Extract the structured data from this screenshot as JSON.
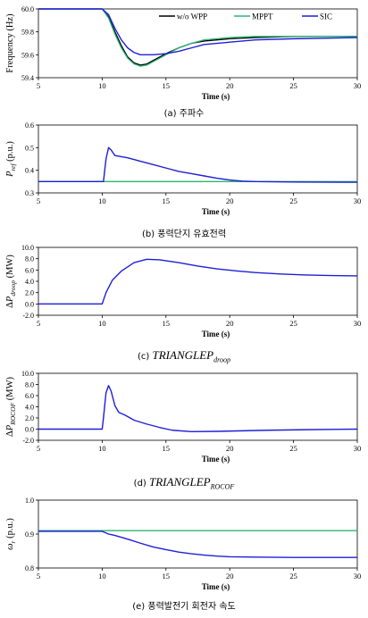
{
  "captions": {
    "a": "(a) 주파수",
    "b": "(b) 풍력단지 유효전력",
    "c_prefix": "(c)",
    "c_main": "TRIANGLEP",
    "c_sub": "droop",
    "d_prefix": "(d)",
    "d_main": "TRIANGLEP",
    "d_sub": "ROCOF",
    "e": "(e) 풍력발전기 회전자 속도"
  },
  "colors": {
    "wo_wpp": "#000000",
    "mppt": "#2bb673",
    "sic": "#1f1fd6"
  },
  "chart_data": [
    {
      "id": "a",
      "type": "line",
      "xlabel": "Time (s)",
      "ylabel": "Frequency (Hz)",
      "xlim": [
        5,
        30
      ],
      "ylim": [
        59.4,
        60.0
      ],
      "xticks": [
        "5",
        "10",
        "15",
        "20",
        "25",
        "30"
      ],
      "yticks": [
        "59.4",
        "59.6",
        "59.8",
        "60.0"
      ],
      "legend": "top-right",
      "series": [
        {
          "name": "w/o WPP",
          "color": "#000000",
          "points": [
            [
              5,
              60.0
            ],
            [
              10,
              60.0
            ],
            [
              10.5,
              59.93
            ],
            [
              11,
              59.8
            ],
            [
              11.5,
              59.68
            ],
            [
              12,
              59.58
            ],
            [
              12.5,
              59.53
            ],
            [
              13,
              59.51
            ],
            [
              13.5,
              59.52
            ],
            [
              14,
              59.55
            ],
            [
              15,
              59.61
            ],
            [
              16,
              59.66
            ],
            [
              17,
              59.7
            ],
            [
              18,
              59.72
            ],
            [
              20,
              59.74
            ],
            [
              22,
              59.75
            ],
            [
              25,
              59.76
            ],
            [
              30,
              59.76
            ]
          ]
        },
        {
          "name": "MPPT",
          "color": "#2bb673",
          "points": [
            [
              5,
              60.0
            ],
            [
              10,
              60.0
            ],
            [
              10.5,
              59.92
            ],
            [
              11,
              59.78
            ],
            [
              11.5,
              59.66
            ],
            [
              12,
              59.57
            ],
            [
              12.5,
              59.52
            ],
            [
              13,
              59.5
            ],
            [
              13.5,
              59.51
            ],
            [
              14,
              59.54
            ],
            [
              15,
              59.6
            ],
            [
              16,
              59.66
            ],
            [
              17,
              59.7
            ],
            [
              18,
              59.73
            ],
            [
              20,
              59.75
            ],
            [
              22,
              59.76
            ],
            [
              25,
              59.76
            ],
            [
              30,
              59.76
            ]
          ]
        },
        {
          "name": "SIC",
          "color": "#1f1fd6",
          "points": [
            [
              5,
              60.0
            ],
            [
              10,
              60.0
            ],
            [
              10.5,
              59.95
            ],
            [
              11,
              59.83
            ],
            [
              11.5,
              59.73
            ],
            [
              12,
              59.66
            ],
            [
              12.5,
              59.62
            ],
            [
              13,
              59.6
            ],
            [
              14,
              59.6
            ],
            [
              15,
              59.61
            ],
            [
              16,
              59.63
            ],
            [
              17,
              59.66
            ],
            [
              18,
              59.69
            ],
            [
              20,
              59.71
            ],
            [
              22,
              59.73
            ],
            [
              25,
              59.74
            ],
            [
              30,
              59.75
            ]
          ]
        }
      ]
    },
    {
      "id": "b",
      "type": "line",
      "xlabel": "Time (s)",
      "ylabel": "P_ref (p.u.)",
      "xlim": [
        5,
        30
      ],
      "ylim": [
        0.3,
        0.6
      ],
      "xticks": [
        "5",
        "10",
        "15",
        "20",
        "25",
        "30"
      ],
      "yticks": [
        "0.3",
        "0.4",
        "0.5",
        "0.6"
      ],
      "series": [
        {
          "name": "MPPT",
          "color": "#2bb673",
          "points": [
            [
              5,
              0.35
            ],
            [
              30,
              0.35
            ]
          ]
        },
        {
          "name": "SIC",
          "color": "#1f1fd6",
          "points": [
            [
              5,
              0.35
            ],
            [
              10.1,
              0.35
            ],
            [
              10.3,
              0.45
            ],
            [
              10.5,
              0.5
            ],
            [
              10.7,
              0.49
            ],
            [
              11,
              0.465
            ],
            [
              12,
              0.455
            ],
            [
              13,
              0.44
            ],
            [
              14,
              0.425
            ],
            [
              15,
              0.41
            ],
            [
              16,
              0.395
            ],
            [
              17,
              0.385
            ],
            [
              18,
              0.375
            ],
            [
              19,
              0.365
            ],
            [
              20,
              0.357
            ],
            [
              21,
              0.352
            ],
            [
              22,
              0.35
            ],
            [
              25,
              0.348
            ],
            [
              30,
              0.347
            ]
          ]
        }
      ]
    },
    {
      "id": "c",
      "type": "line",
      "xlabel": "Time (s)",
      "ylabel": "ΔP_droop (MW)",
      "xlim": [
        5,
        30
      ],
      "ylim": [
        -2.0,
        10.0
      ],
      "xticks": [
        "5",
        "10",
        "15",
        "20",
        "25",
        "30"
      ],
      "yticks": [
        "-2.0",
        "0.0",
        "2.0",
        "4.0",
        "6.0",
        "8.0",
        "10.0"
      ],
      "series": [
        {
          "name": "SIC",
          "color": "#1f1fd6",
          "points": [
            [
              5,
              0
            ],
            [
              10,
              0
            ],
            [
              10.3,
              2.0
            ],
            [
              10.8,
              4.2
            ],
            [
              11.5,
              5.8
            ],
            [
              12.5,
              7.3
            ],
            [
              13.5,
              7.9
            ],
            [
              14.5,
              7.8
            ],
            [
              16,
              7.3
            ],
            [
              17.5,
              6.7
            ],
            [
              19,
              6.2
            ],
            [
              20.5,
              5.85
            ],
            [
              22,
              5.55
            ],
            [
              24,
              5.3
            ],
            [
              26,
              5.12
            ],
            [
              28,
              5.02
            ],
            [
              30,
              4.95
            ]
          ]
        }
      ]
    },
    {
      "id": "d",
      "type": "line",
      "xlabel": "Time (s)",
      "ylabel": "ΔP_ROCOF (MW)",
      "xlim": [
        5,
        30
      ],
      "ylim": [
        -2.0,
        10.0
      ],
      "xticks": [
        "5",
        "10",
        "15",
        "20",
        "25",
        "30"
      ],
      "yticks": [
        "-2.0",
        "0.0",
        "2.0",
        "4.0",
        "6.0",
        "8.0",
        "10.0"
      ],
      "series": [
        {
          "name": "SIC",
          "color": "#1f1fd6",
          "points": [
            [
              5,
              0
            ],
            [
              10,
              0
            ],
            [
              10.1,
              2.0
            ],
            [
              10.3,
              6.5
            ],
            [
              10.5,
              7.8
            ],
            [
              10.7,
              6.8
            ],
            [
              11,
              4.2
            ],
            [
              11.3,
              3.0
            ],
            [
              11.8,
              2.5
            ],
            [
              12.5,
              1.6
            ],
            [
              13.5,
              0.9
            ],
            [
              14.5,
              0.3
            ],
            [
              15.5,
              -0.2
            ],
            [
              17,
              -0.45
            ],
            [
              19,
              -0.4
            ],
            [
              21,
              -0.3
            ],
            [
              23,
              -0.2
            ],
            [
              26,
              -0.1
            ],
            [
              30,
              0
            ]
          ]
        }
      ]
    },
    {
      "id": "e",
      "type": "line",
      "xlabel": "Time (s)",
      "ylabel": "ω_r (p.u.)",
      "xlim": [
        5,
        30
      ],
      "ylim": [
        0.8,
        1.0
      ],
      "xticks": [
        "5",
        "10",
        "15",
        "20",
        "25",
        "30"
      ],
      "yticks": [
        "0.8",
        "0.9",
        "1.0"
      ],
      "series": [
        {
          "name": "MPPT",
          "color": "#2bb673",
          "points": [
            [
              5,
              0.91
            ],
            [
              30,
              0.91
            ]
          ]
        },
        {
          "name": "SIC",
          "color": "#1f1fd6",
          "points": [
            [
              5,
              0.908
            ],
            [
              10,
              0.908
            ],
            [
              10.5,
              0.9
            ],
            [
              11,
              0.896
            ],
            [
              12,
              0.885
            ],
            [
              13,
              0.873
            ],
            [
              14,
              0.862
            ],
            [
              15,
              0.854
            ],
            [
              16,
              0.847
            ],
            [
              17,
              0.842
            ],
            [
              18,
              0.838
            ],
            [
              19,
              0.835
            ],
            [
              20,
              0.833
            ],
            [
              22,
              0.832
            ],
            [
              25,
              0.831
            ],
            [
              30,
              0.831
            ]
          ]
        }
      ]
    }
  ]
}
